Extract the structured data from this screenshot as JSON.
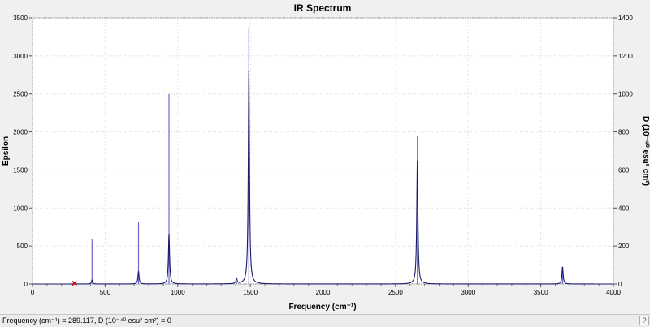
{
  "status_bar": {
    "text": "Frequency (cm⁻¹) = 289.117, D (10⁻⁴⁰ esu² cm²) = 0"
  },
  "colors": {
    "epsilon_curve": "#1a1a6e",
    "intensity_sticks": "#6a6ad0",
    "cursor_marker": "#cc0000",
    "plot_background": "#ffffff"
  },
  "chart_data": {
    "type": "line",
    "title": "IR Spectrum",
    "xlabel": "Frequency (cm⁻¹)",
    "ylabel": "Epsilon",
    "y2label": "D (10⁻⁴⁰ esu² cm²)",
    "xlim": [
      0,
      4000
    ],
    "ylim": [
      0,
      3500
    ],
    "y2lim": [
      0,
      1400
    ],
    "x_ticks": [
      "0",
      "500",
      "1000",
      "1500",
      "2000",
      "2500",
      "3000",
      "3500",
      "4000"
    ],
    "y_ticks": [
      "0",
      "500",
      "1000",
      "1500",
      "2000",
      "2500",
      "3000",
      "3500"
    ],
    "y2_ticks": [
      "0",
      "200",
      "400",
      "600",
      "800",
      "1000",
      "1200",
      "1400"
    ],
    "grid": true,
    "epsilon_peaks": [
      {
        "x": 410,
        "y": 50
      },
      {
        "x": 730,
        "y": 160
      },
      {
        "x": 940,
        "y": 640
      },
      {
        "x": 1405,
        "y": 70
      },
      {
        "x": 1490,
        "y": 2790
      },
      {
        "x": 2650,
        "y": 1600
      },
      {
        "x": 3650,
        "y": 220
      }
    ],
    "intensity_sticks": [
      {
        "x": 410,
        "y": 238
      },
      {
        "x": 730,
        "y": 326
      },
      {
        "x": 940,
        "y": 1000
      },
      {
        "x": 1405,
        "y": 14
      },
      {
        "x": 1490,
        "y": 1352
      },
      {
        "x": 2650,
        "y": 780
      },
      {
        "x": 3650,
        "y": 90
      }
    ],
    "cursor": {
      "x": 289.117,
      "y": 0
    }
  }
}
